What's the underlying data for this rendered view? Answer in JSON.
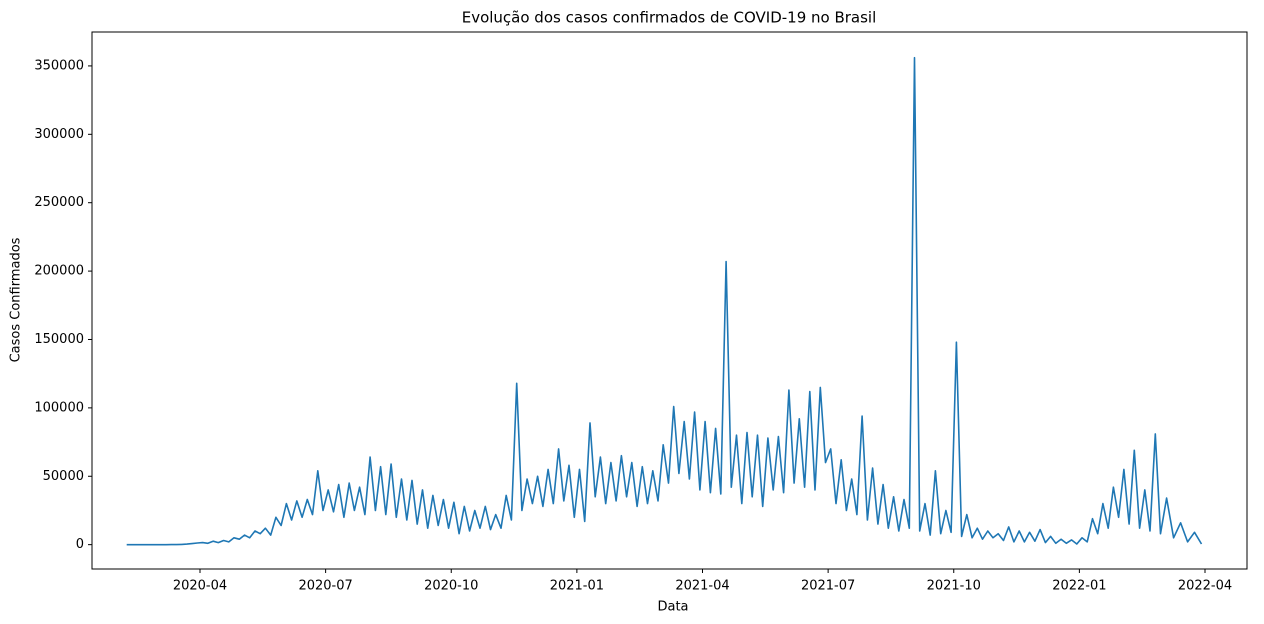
{
  "chart_data": {
    "type": "line",
    "title": "Evolução dos casos confirmados de COVID-19 no Brasil",
    "x_label": "Data",
    "y_label": "Casos Confirmados",
    "color": "#1f77b4",
    "ylim": [
      -17800,
      374800
    ],
    "yticks": [
      0,
      50000,
      100000,
      150000,
      200000,
      250000,
      300000,
      350000
    ],
    "xticks": [
      "2020-04",
      "2020-07",
      "2020-10",
      "2021-01",
      "2021-04",
      "2021-07",
      "2021-10",
      "2022-01",
      "2022-04"
    ],
    "grid": false,
    "x": [
      "2020-02",
      "2020-02",
      "2020-03",
      "2020-03",
      "2020-03",
      "2020-03",
      "2020-03",
      "2020-03",
      "2020-03",
      "2020-03",
      "2020-04",
      "2020-04",
      "2020-04",
      "2020-04",
      "2020-04",
      "2020-04",
      "2020-04",
      "2020-04",
      "2020-05",
      "2020-05",
      "2020-05",
      "2020-05",
      "2020-05",
      "2020-05",
      "2020-05",
      "2020-05",
      "2020-06",
      "2020-06",
      "2020-06",
      "2020-06",
      "2020-06",
      "2020-06",
      "2020-06",
      "2020-06",
      "2020-07",
      "2020-07",
      "2020-07",
      "2020-07",
      "2020-07",
      "2020-07",
      "2020-07",
      "2020-07",
      "2020-08",
      "2020-08",
      "2020-08",
      "2020-08",
      "2020-08",
      "2020-08",
      "2020-08",
      "2020-08",
      "2020-09",
      "2020-09",
      "2020-09",
      "2020-09",
      "2020-09",
      "2020-09",
      "2020-09",
      "2020-09",
      "2020-10",
      "2020-10",
      "2020-10",
      "2020-10",
      "2020-10",
      "2020-10",
      "2020-10",
      "2020-10",
      "2020-11",
      "2020-11",
      "2020-11",
      "2020-11",
      "2020-11",
      "2020-11",
      "2020-11",
      "2020-11",
      "2020-12",
      "2020-12",
      "2020-12",
      "2020-12",
      "2020-12",
      "2020-12",
      "2020-12",
      "2020-12",
      "2021-01",
      "2021-01",
      "2021-01",
      "2021-01",
      "2021-01",
      "2021-01",
      "2021-01",
      "2021-01",
      "2021-02",
      "2021-02",
      "2021-02",
      "2021-02",
      "2021-02",
      "2021-02",
      "2021-02",
      "2021-02",
      "2021-03",
      "2021-03",
      "2021-03",
      "2021-03",
      "2021-03",
      "2021-03",
      "2021-03",
      "2021-03",
      "2021-04",
      "2021-04",
      "2021-04",
      "2021-04",
      "2021-04",
      "2021-04",
      "2021-04",
      "2021-04",
      "2021-05",
      "2021-05",
      "2021-05",
      "2021-05",
      "2021-05",
      "2021-05",
      "2021-05",
      "2021-05",
      "2021-06",
      "2021-06",
      "2021-06",
      "2021-06",
      "2021-06",
      "2021-06",
      "2021-06",
      "2021-06",
      "2021-07",
      "2021-07",
      "2021-07",
      "2021-07",
      "2021-07",
      "2021-07",
      "2021-07",
      "2021-07",
      "2021-08",
      "2021-08",
      "2021-08",
      "2021-08",
      "2021-08",
      "2021-08",
      "2021-08",
      "2021-08",
      "2021-09",
      "2021-09",
      "2021-09",
      "2021-09",
      "2021-09",
      "2021-09",
      "2021-09",
      "2021-09",
      "2021-10",
      "2021-10",
      "2021-10",
      "2021-10",
      "2021-10",
      "2021-10",
      "2021-10",
      "2021-10",
      "2021-11",
      "2021-11",
      "2021-11",
      "2021-11",
      "2021-11",
      "2021-11",
      "2021-11",
      "2021-11",
      "2021-12",
      "2021-12",
      "2021-12",
      "2021-12",
      "2021-12",
      "2021-12",
      "2021-12",
      "2021-12",
      "2022-01",
      "2022-01",
      "2022-01",
      "2022-01",
      "2022-01",
      "2022-01",
      "2022-01",
      "2022-01",
      "2022-02",
      "2022-02",
      "2022-02",
      "2022-02",
      "2022-02",
      "2022-02",
      "2022-02",
      "2022-02",
      "2022-03",
      "2022-03",
      "2022-03",
      "2022-03",
      "2022-03",
      "2022-03"
    ],
    "values": [
      0,
      0,
      0,
      0,
      10,
      50,
      200,
      400,
      800,
      1200,
      1500,
      1000,
      2500,
      1500,
      3000,
      2000,
      5000,
      4000,
      7000,
      5000,
      10000,
      8000,
      12000,
      7000,
      20000,
      14000,
      30000,
      18000,
      32000,
      20000,
      33000,
      22000,
      54000,
      25000,
      40000,
      24000,
      44000,
      20000,
      45000,
      25000,
      42000,
      22000,
      64000,
      25000,
      57000,
      22000,
      59000,
      20000,
      48000,
      18000,
      47000,
      15000,
      40000,
      12000,
      36000,
      14000,
      33000,
      12000,
      31000,
      8000,
      28000,
      10000,
      25000,
      12000,
      28000,
      11000,
      22000,
      12000,
      36000,
      18000,
      118000,
      25000,
      48000,
      30000,
      50000,
      28000,
      55000,
      30000,
      70000,
      32000,
      58000,
      20000,
      55000,
      17000,
      89000,
      35000,
      64000,
      30000,
      60000,
      32000,
      65000,
      35000,
      60000,
      28000,
      57000,
      30000,
      54000,
      32000,
      73000,
      45000,
      101000,
      52000,
      90000,
      48000,
      97000,
      40000,
      90000,
      38000,
      85000,
      37000,
      207000,
      42000,
      80000,
      30000,
      82000,
      35000,
      80000,
      28000,
      78000,
      40000,
      79000,
      38000,
      113000,
      45000,
      92000,
      42000,
      112000,
      40000,
      115000,
      60000,
      70000,
      30000,
      62000,
      25000,
      48000,
      22000,
      94000,
      18000,
      56000,
      15000,
      44000,
      12000,
      35000,
      10000,
      33000,
      12000,
      356000,
      10000,
      30000,
      7000,
      54000,
      8000,
      25000,
      9000,
      148000,
      6000,
      22000,
      5000,
      12000,
      4000,
      10000,
      5000,
      8000,
      3000,
      13000,
      2000,
      10000,
      2000,
      9000,
      2500,
      11000,
      1500,
      6000,
      1000,
      4000,
      1000,
      3500,
      500,
      5000,
      2000,
      19000,
      8000,
      30000,
      12000,
      42000,
      20000,
      55000,
      15000,
      69000,
      12000,
      40000,
      10000,
      81000,
      8000,
      34000,
      5000,
      16000,
      2000,
      9000,
      500
    ]
  }
}
